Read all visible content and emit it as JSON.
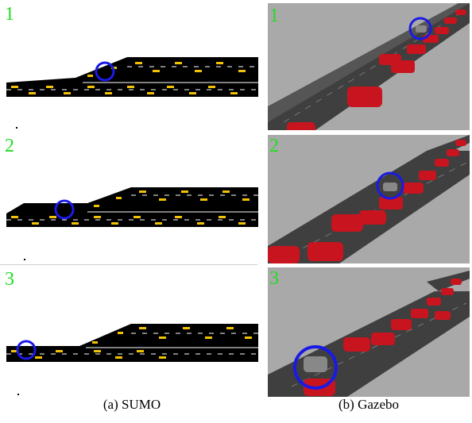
{
  "rows": [
    {
      "sumo_label": "1",
      "gazebo_label": "1"
    },
    {
      "sumo_label": "2",
      "gazebo_label": "2"
    },
    {
      "sumo_label": "3",
      "gazebo_label": "3"
    }
  ],
  "captions": {
    "sumo": "(a) SUMO",
    "gazebo": "(b) Gazebo"
  },
  "colors": {
    "frame_number": "#22dd22",
    "highlight_circle": "#1a1ae6",
    "vehicle_sumo": "#f2c200",
    "vehicle_gazebo": "#c8141e",
    "road_gazebo": "#3f3f3f",
    "ground_gazebo": "#a9a9a9"
  }
}
